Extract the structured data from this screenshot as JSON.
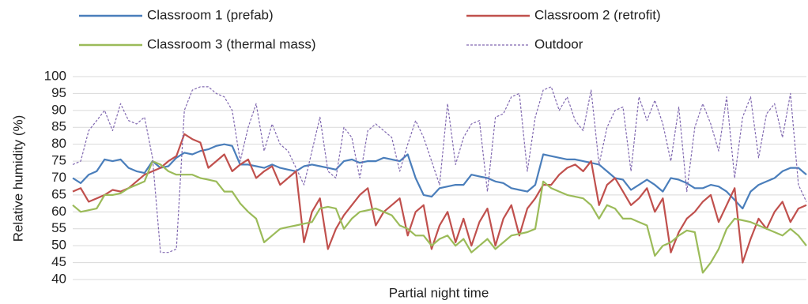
{
  "chart_data": {
    "type": "line",
    "x_label": "Partial night time",
    "y_label": "Relative humidity (%)",
    "ylim": [
      40,
      100
    ],
    "yticks": [
      40,
      45,
      50,
      55,
      60,
      65,
      70,
      75,
      80,
      85,
      90,
      95,
      100
    ],
    "grid": true,
    "legend": "top",
    "categories": [
      null,
      null,
      null,
      null,
      null,
      null,
      null,
      null,
      null,
      null,
      null,
      null,
      null,
      null,
      null,
      null,
      null,
      null,
      null,
      null,
      null,
      null,
      null,
      null,
      null,
      null,
      null,
      null,
      null,
      null,
      null,
      null,
      null,
      null,
      null,
      null,
      null,
      null,
      null,
      null,
      null,
      null,
      null,
      null,
      null,
      null,
      null,
      null,
      null,
      null,
      null,
      null,
      null,
      null,
      null,
      null,
      null,
      null,
      null,
      null,
      null,
      null,
      null,
      null,
      null,
      null,
      null,
      null,
      null,
      null,
      null,
      null,
      null,
      null,
      null,
      null,
      null,
      null,
      null,
      null,
      null,
      null,
      null,
      null,
      null,
      null,
      null,
      null,
      null,
      null,
      null,
      null,
      null
    ],
    "series": [
      {
        "name": "Classroom 1 (prefab)",
        "color": "#4a7ebb",
        "line_style": "solid",
        "values": [
          70,
          68.5,
          71,
          72,
          75.5,
          75,
          75.5,
          73,
          72,
          71.5,
          75,
          73,
          73.5,
          76,
          77.5,
          77,
          78,
          78.5,
          79.5,
          80,
          79.5,
          74,
          74,
          73.5,
          73,
          74,
          73,
          72.5,
          72,
          73.5,
          74,
          73.5,
          73,
          72.5,
          75,
          75.5,
          74.5,
          75,
          75,
          76,
          75.5,
          75,
          77,
          70,
          65,
          64.5,
          67,
          67.5,
          68,
          68,
          71,
          70.5,
          70,
          69,
          68.5,
          67,
          66.5,
          66,
          68,
          77,
          76.5,
          76,
          75.5,
          75.5,
          75,
          74.5,
          74,
          72,
          70,
          69.5,
          66.5,
          68,
          69.5,
          68,
          66,
          70,
          69.5,
          68.5,
          67,
          67,
          68,
          67.5,
          66,
          63.5,
          61,
          66,
          68,
          69,
          70,
          72,
          73,
          73,
          71
        ]
      },
      {
        "name": "Classroom 2 (retrofit)",
        "color": "#c0504d",
        "line_style": "solid",
        "values": [
          66,
          67,
          63,
          64,
          65,
          66.5,
          66,
          67,
          69,
          71,
          72,
          73,
          75,
          76.5,
          83,
          81.5,
          80.5,
          73,
          75,
          77,
          72,
          74,
          75.5,
          70,
          72,
          73.5,
          68,
          70,
          72,
          51,
          60,
          64,
          49,
          55,
          59,
          62,
          65,
          67,
          56,
          60,
          62,
          64,
          53,
          60,
          62,
          49,
          56,
          60,
          51,
          58,
          50,
          57,
          61,
          50,
          58,
          62,
          53,
          61,
          64,
          68,
          68,
          71,
          73,
          74,
          72,
          75,
          62,
          68,
          70,
          66,
          62,
          64,
          67,
          60,
          64,
          48,
          54,
          58,
          60,
          63,
          65,
          57,
          62,
          67,
          45,
          52,
          58,
          55,
          60,
          63,
          57,
          61,
          62
        ]
      },
      {
        "name": "Classroom 3 (thermal mass)",
        "color": "#9bbb59",
        "line_style": "solid",
        "values": [
          62,
          60,
          60.5,
          61,
          65,
          65,
          65.5,
          67,
          68,
          69,
          75,
          74,
          72,
          71,
          71,
          71,
          70,
          69.5,
          69,
          66,
          66,
          62.5,
          60,
          58,
          51,
          53,
          55,
          55.5,
          56,
          56.5,
          57,
          61,
          61.5,
          61,
          55,
          58,
          60,
          60.5,
          61,
          60,
          59,
          56,
          55,
          53,
          53,
          50,
          52,
          53,
          50,
          52,
          48,
          50,
          52,
          49,
          51,
          53,
          53.5,
          54,
          55,
          69,
          67,
          66,
          65,
          64.5,
          64,
          62,
          58,
          62,
          61,
          58,
          58,
          57,
          56,
          47,
          50,
          51,
          53,
          54.5,
          54,
          42,
          45,
          49,
          55,
          58,
          57.5,
          57,
          56,
          55,
          54,
          53,
          55,
          53,
          50
        ]
      },
      {
        "name": "Outdoor",
        "color": "#8068b0",
        "line_style": "dashed",
        "values": [
          74,
          75,
          84,
          87,
          90,
          84,
          92,
          87,
          86,
          88,
          76,
          48,
          48,
          49,
          90,
          96,
          97,
          97,
          95,
          94,
          90,
          75,
          85,
          92,
          78,
          86,
          80,
          78,
          73,
          68,
          78,
          88,
          72,
          70,
          85,
          82,
          70,
          84,
          86,
          84,
          82,
          72,
          80,
          87,
          82,
          75,
          68,
          92,
          74,
          82,
          86,
          87,
          66,
          88,
          89,
          94,
          95,
          72,
          88,
          96,
          97,
          90,
          94,
          87,
          84,
          96,
          74,
          85,
          90,
          91,
          72,
          94,
          87,
          93,
          86,
          75,
          91,
          66,
          85,
          92,
          86,
          78,
          94,
          70,
          88,
          94,
          76,
          89,
          92,
          82,
          95,
          68,
          63
        ]
      }
    ]
  }
}
